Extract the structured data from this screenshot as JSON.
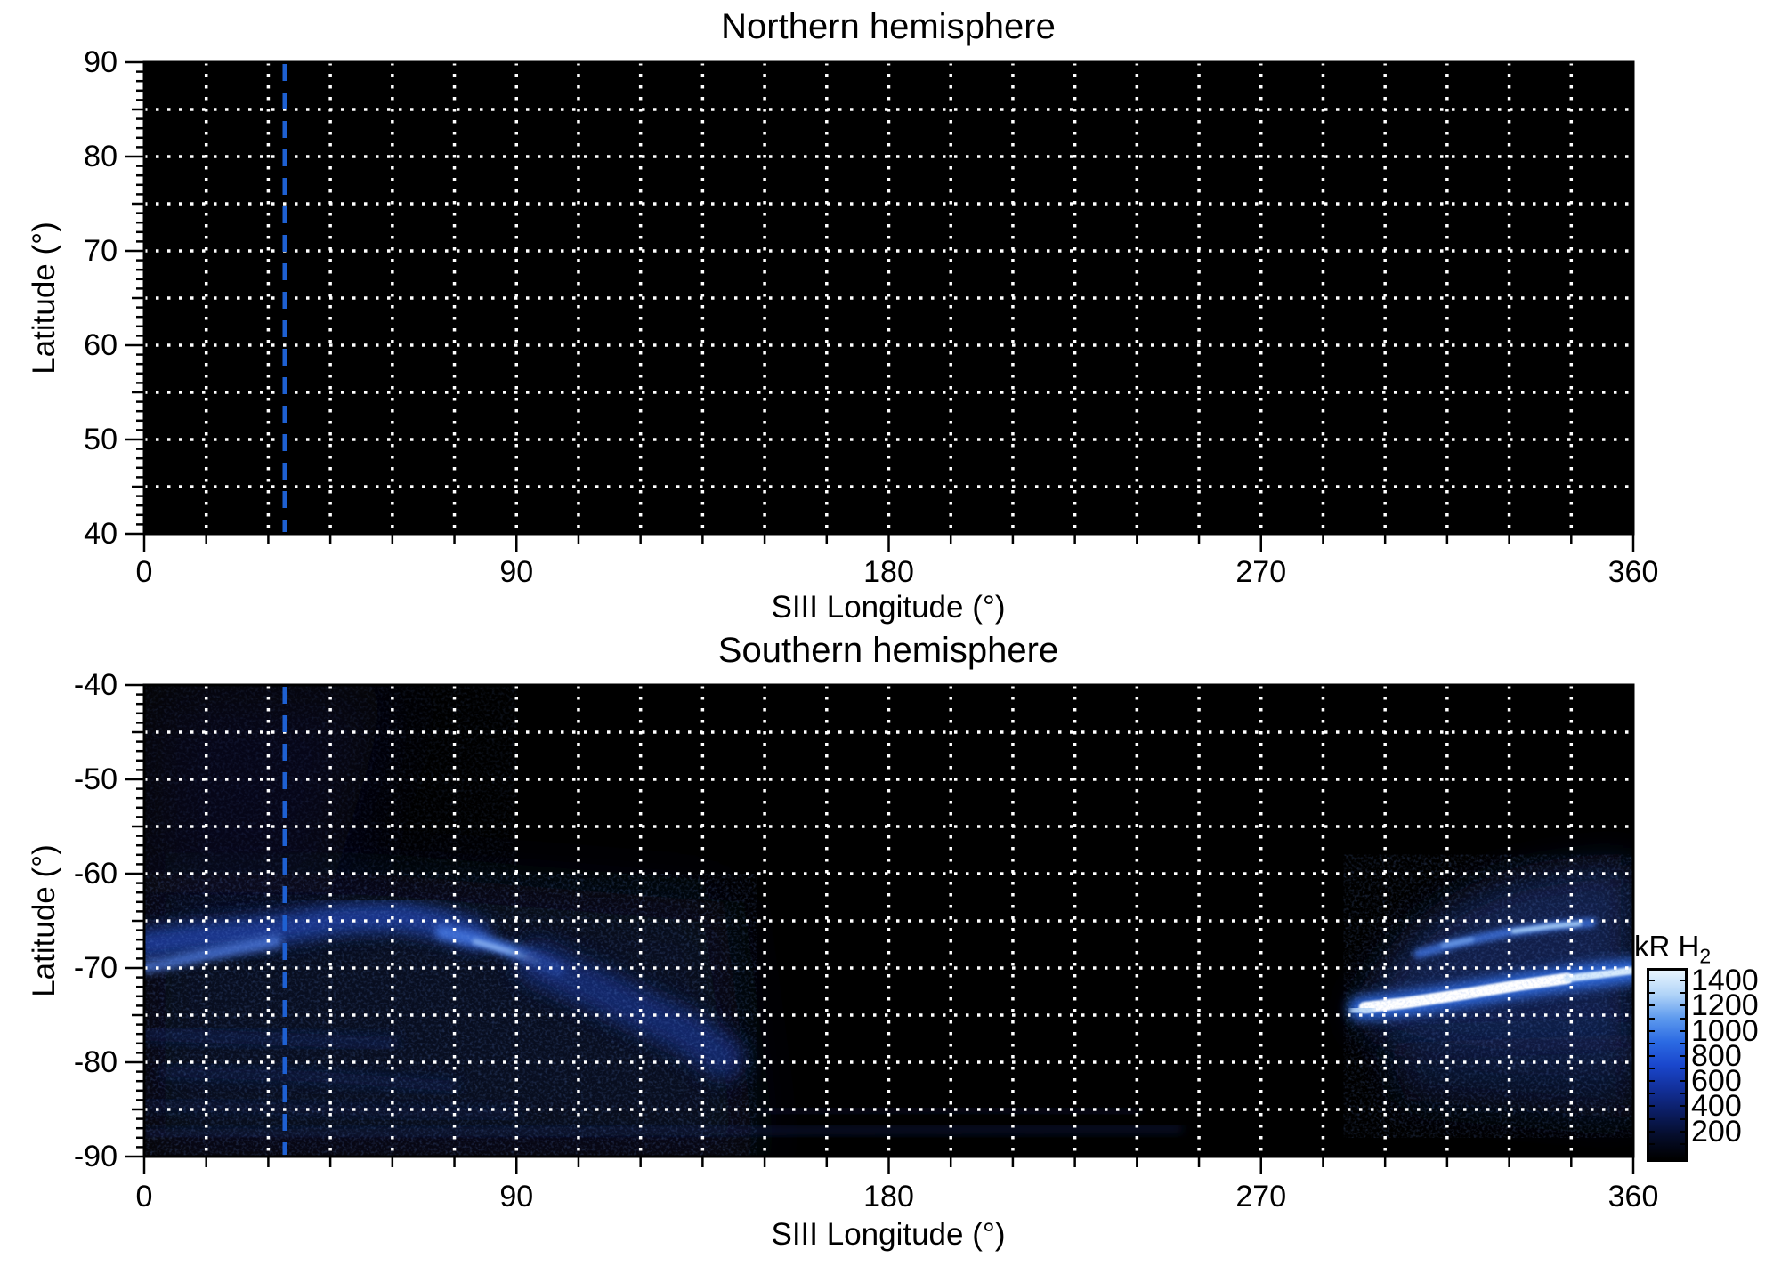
{
  "titles": {
    "north": "Northern hemisphere",
    "south": "Southern hemisphere"
  },
  "axes": {
    "xlabel": "SIII Longitude (°)",
    "ylabel": "Latitude (°)",
    "x_ticks": [
      0,
      90,
      180,
      270,
      360
    ],
    "x_range": [
      0,
      360
    ],
    "x_grid_step": 15,
    "north_y_ticks": [
      90,
      80,
      70,
      60,
      50,
      40
    ],
    "north_y_range": [
      40,
      90
    ],
    "south_y_ticks": [
      -40,
      -50,
      -60,
      -70,
      -80,
      -90
    ],
    "south_y_range": [
      -90,
      -40
    ],
    "y_grid_step": 5,
    "y_minor_step": 1,
    "grid_color": "#ffffff",
    "background_color": "#000000"
  },
  "marker": {
    "longitude": 34,
    "color": "#1e60d2",
    "style": "dashed"
  },
  "colorbar": {
    "label": "kR H",
    "label_sub": "2",
    "ticks": [
      1400,
      1200,
      1000,
      800,
      600,
      400,
      200
    ],
    "range": [
      0,
      1500
    ],
    "colors": [
      "#000000",
      "#050d2b",
      "#0b1d62",
      "#12309b",
      "#1a47cd",
      "#2c6be3",
      "#5f9bee",
      "#b1d4f8",
      "#e8f5fe"
    ]
  },
  "chart_data": [
    {
      "type": "heatmap",
      "title": "Northern hemisphere",
      "xlabel": "SIII Longitude (°)",
      "ylabel": "Latitude (°)",
      "xlim": [
        0,
        360
      ],
      "ylim": [
        40,
        90
      ],
      "grid": "dotted, 15 deg longitude x 5 deg latitude",
      "vertical_marker_longitude": 34,
      "background": "black (no detectable emission)",
      "features": []
    },
    {
      "type": "heatmap",
      "title": "Southern hemisphere",
      "xlabel": "SIII Longitude (°)",
      "ylabel": "Latitude (°)",
      "xlim": [
        0,
        360
      ],
      "ylim": [
        -90,
        -40
      ],
      "grid": "dotted, 15 deg longitude x 5 deg latitude",
      "vertical_marker_longitude": 34,
      "units": "kR H2",
      "colorbar_range": [
        0,
        1500
      ],
      "features": [
        {
          "name": "left-lower-diffuse-wash",
          "type": "fill",
          "intensity_kR": 150,
          "color": "#0b1333",
          "opacity": 0.65,
          "blur": 5,
          "points": [
            [
              0,
              -60
            ],
            [
              55,
              -60
            ],
            [
              140,
              -63
            ],
            [
              148,
              -90
            ],
            [
              0,
              -90
            ]
          ]
        },
        {
          "name": "upper-left-faint-tint",
          "type": "fill",
          "intensity_kR": 80,
          "color": "#0a1130",
          "opacity": 0.5,
          "blur": 6,
          "points": [
            [
              0,
              -40
            ],
            [
              60,
              -40
            ],
            [
              45,
              -62
            ],
            [
              0,
              -62
            ]
          ]
        },
        {
          "name": "left-main-diffuse-band",
          "type": "stroke",
          "intensity_kR": 350,
          "color": "#1c3d9c",
          "width": 3.2,
          "opacity": 0.9,
          "blur": 1.3,
          "points": [
            [
              0,
              -67.5
            ],
            [
              12,
              -66.8
            ],
            [
              30,
              -66
            ],
            [
              48,
              -64.8
            ],
            [
              62,
              -64.6
            ],
            [
              72,
              -65.4
            ],
            [
              80,
              -66.5
            ]
          ]
        },
        {
          "name": "left-edge-bright-streak",
          "type": "stroke",
          "intensity_kR": 700,
          "color": "#4a74d8",
          "width": 1.2,
          "opacity": 0.9,
          "blur": 0.7,
          "points": [
            [
              0,
              -69.9
            ],
            [
              6,
              -69.5
            ],
            [
              14,
              -68.7
            ],
            [
              24,
              -67.8
            ],
            [
              32,
              -67.2
            ]
          ]
        },
        {
          "name": "mid-bright-arc-80-100",
          "type": "stroke",
          "intensity_kR": 600,
          "color": "#3f6fd8",
          "width": 1.5,
          "opacity": 0.95,
          "blur": 0.6,
          "points": [
            [
              72,
              -66.2
            ],
            [
              82,
              -67.2
            ],
            [
              92,
              -68.6
            ],
            [
              100,
              -70.2
            ]
          ]
        },
        {
          "name": "mid-arc-highlight",
          "type": "stroke",
          "intensity_kR": 900,
          "color": "#86aeee",
          "width": 0.6,
          "opacity": 0.9,
          "blur": 0.3,
          "points": [
            [
              80,
              -67.2
            ],
            [
              88,
              -68.2
            ],
            [
              95,
              -69.3
            ]
          ]
        },
        {
          "name": "descending-band-95-140",
          "type": "stroke",
          "intensity_kR": 300,
          "color": "#152e7e",
          "width": 4.5,
          "opacity": 0.8,
          "blur": 1.6,
          "points": [
            [
              95,
              -69.5
            ],
            [
              108,
              -72
            ],
            [
              120,
              -74.5
            ],
            [
              132,
              -77
            ],
            [
              140,
              -79.5
            ]
          ]
        },
        {
          "name": "low-wisp-77",
          "type": "stroke",
          "intensity_kR": 150,
          "color": "#10225c",
          "width": 1.4,
          "opacity": 0.6,
          "blur": 1,
          "points": [
            [
              0,
              -77
            ],
            [
              30,
              -77.5
            ],
            [
              60,
              -78
            ]
          ]
        },
        {
          "name": "low-wisp-81",
          "type": "stroke",
          "intensity_kR": 140,
          "color": "#10225c",
          "width": 1.2,
          "opacity": 0.55,
          "blur": 1,
          "points": [
            [
              5,
              -81
            ],
            [
              40,
              -81.5
            ],
            [
              75,
              -82.5
            ]
          ]
        },
        {
          "name": "low-wisp-85",
          "type": "stroke",
          "intensity_kR": 120,
          "color": "#0e1d50",
          "width": 1.1,
          "opacity": 0.5,
          "blur": 1,
          "points": [
            [
              0,
              -84.5
            ],
            [
              40,
              -85
            ],
            [
              90,
              -85.5
            ]
          ]
        },
        {
          "name": "bottom-long-streak",
          "type": "stroke",
          "intensity_kR": 120,
          "color": "#0e1c4e",
          "width": 1.0,
          "opacity": 0.55,
          "blur": 0.8,
          "points": [
            [
              0,
              -87.6
            ],
            [
              80,
              -87.4
            ],
            [
              160,
              -87.2
            ],
            [
              250,
              -87.0
            ]
          ]
        },
        {
          "name": "bottom-streak-2",
          "type": "stroke",
          "intensity_kR": 100,
          "color": "#0b1740",
          "width": 0.8,
          "opacity": 0.5,
          "blur": 0.8,
          "points": [
            [
              150,
              -85.2
            ],
            [
              200,
              -85.0
            ],
            [
              240,
              -85.3
            ]
          ]
        },
        {
          "name": "right-diffuse-region",
          "type": "fill",
          "intensity_kR": 300,
          "color": "#13265c",
          "opacity": 0.8,
          "blur": 3,
          "points": [
            [
              293,
              -75
            ],
            [
              300,
              -70
            ],
            [
              308,
              -66
            ],
            [
              318,
              -63
            ],
            [
              332,
              -60.5
            ],
            [
              346,
              -59.5
            ],
            [
              360,
              -59
            ],
            [
              360,
              -80
            ],
            [
              330,
              -80
            ],
            [
              310,
              -79
            ],
            [
              298,
              -77
            ]
          ]
        },
        {
          "name": "right-below-arc-wash",
          "type": "fill",
          "intensity_kR": 180,
          "color": "#0c1a46",
          "opacity": 0.6,
          "blur": 3,
          "points": [
            [
              300,
              -78
            ],
            [
              360,
              -77
            ],
            [
              360,
              -86
            ],
            [
              305,
              -84
            ]
          ]
        },
        {
          "name": "upper-right-arc",
          "type": "stroke",
          "intensity_kR": 700,
          "color": "#3b6ed8",
          "width": 1.0,
          "opacity": 0.9,
          "blur": 0.5,
          "points": [
            [
              308,
              -68.5
            ],
            [
              318,
              -67.3
            ],
            [
              330,
              -66.2
            ],
            [
              342,
              -65.5
            ],
            [
              350,
              -65.2
            ]
          ]
        },
        {
          "name": "upper-arc-knots",
          "type": "stroke",
          "intensity_kR": 1100,
          "color": "#a6cdf6",
          "width": 0.5,
          "opacity": 0.95,
          "blur": 0.25,
          "points": [
            [
              331,
              -66.1
            ],
            [
              340,
              -65.6
            ],
            [
              347,
              -65.3
            ]
          ]
        },
        {
          "name": "upper-arc-knot-2",
          "type": "stroke",
          "intensity_kR": 900,
          "color": "#6f9fe8",
          "width": 0.5,
          "opacity": 0.9,
          "blur": 0.3,
          "points": [
            [
              314,
              -67.6
            ],
            [
              321,
              -67.0
            ]
          ]
        },
        {
          "name": "main-arc-glow",
          "type": "stroke",
          "intensity_kR": 1000,
          "color": "#2e6be0",
          "width": 2.6,
          "opacity": 0.95,
          "blur": 0.9,
          "points": [
            [
              294,
              -74.3
            ],
            [
              305,
              -73.8
            ],
            [
              318,
              -72.9
            ],
            [
              332,
              -71.9
            ],
            [
              346,
              -71.0
            ],
            [
              360,
              -70.3
            ]
          ]
        },
        {
          "name": "main-arc-core",
          "type": "stroke",
          "intensity_kR": 1500,
          "color": "#ffffff",
          "width": 1.2,
          "opacity": 1,
          "blur": 0.15,
          "points": [
            [
              295,
              -74.2
            ],
            [
              305,
              -73.7
            ],
            [
              318,
              -72.85
            ],
            [
              332,
              -71.85
            ],
            [
              344,
              -71.1
            ]
          ]
        },
        {
          "name": "main-arc-tail",
          "type": "stroke",
          "intensity_kR": 1200,
          "color": "#d7ebfd",
          "width": 0.8,
          "opacity": 1,
          "blur": 0.2,
          "points": [
            [
              344,
              -71.1
            ],
            [
              352,
              -70.7
            ],
            [
              360,
              -70.25
            ]
          ]
        },
        {
          "name": "arc-left-tip",
          "type": "stroke",
          "intensity_kR": 1200,
          "color": "#bcd9f8",
          "width": 1.4,
          "opacity": 0.9,
          "blur": 0.4,
          "points": [
            [
              293,
              -74.6
            ],
            [
              296,
              -74.4
            ]
          ]
        },
        {
          "name": "noise-upper-left",
          "type": "noise",
          "region": [
            [
              0,
              -40
            ],
            [
              90,
              -60
            ]
          ],
          "opacity": 0.3
        },
        {
          "name": "noise-lower-left",
          "type": "noise",
          "region": [
            [
              0,
              -60
            ],
            [
              148,
              -90
            ]
          ],
          "opacity": 0.55
        },
        {
          "name": "noise-right",
          "type": "noise",
          "region": [
            [
              290,
              -58
            ],
            [
              360,
              -88
            ]
          ],
          "opacity": 0.55
        }
      ]
    }
  ]
}
